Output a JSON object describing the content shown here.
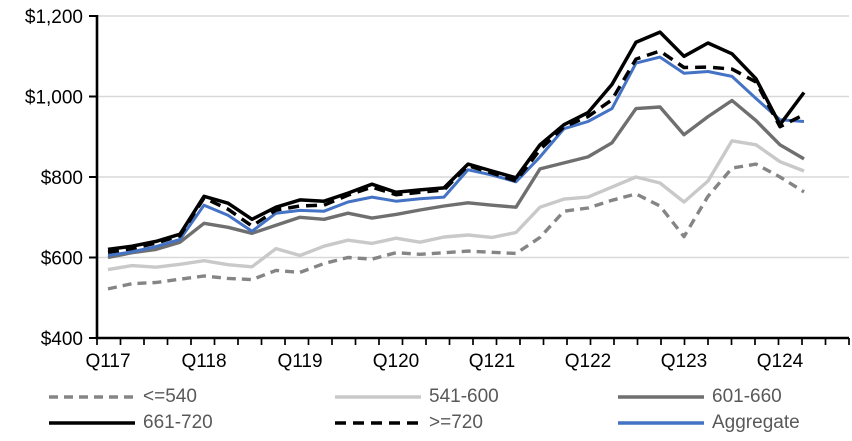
{
  "chart_data": {
    "type": "line",
    "title": "",
    "xlabel": "",
    "ylabel": "",
    "ylim": [
      400,
      1200
    ],
    "grid": "horizontal",
    "y_gridlines": [
      600,
      800,
      1000,
      1200
    ],
    "y_ticks": [
      {
        "label": "$400",
        "value": 400
      },
      {
        "label": "$600",
        "value": 600
      },
      {
        "label": "$800",
        "value": 800
      },
      {
        "label": "$1,000",
        "value": 1000
      },
      {
        "label": "$1,200",
        "value": 1200
      }
    ],
    "x_categories": [
      "Q117",
      "Q217",
      "Q317",
      "Q417",
      "Q118",
      "Q218",
      "Q318",
      "Q418",
      "Q119",
      "Q219",
      "Q319",
      "Q419",
      "Q120",
      "Q220",
      "Q320",
      "Q420",
      "Q121",
      "Q221",
      "Q321",
      "Q421",
      "Q122",
      "Q222",
      "Q322",
      "Q422",
      "Q123",
      "Q223",
      "Q323",
      "Q423",
      "Q124",
      "Q224"
    ],
    "x_tick_labels": [
      "Q117",
      "Q118",
      "Q119",
      "Q120",
      "Q121",
      "Q122",
      "Q123",
      "Q124"
    ],
    "legend_position": "bottom",
    "series": [
      {
        "key": "le-540",
        "name": "<=540",
        "color": "#858585",
        "dash": "9 6",
        "width": 3.4,
        "values": [
          522,
          535,
          538,
          546,
          554,
          548,
          545,
          568,
          563,
          585,
          600,
          596,
          612,
          608,
          612,
          616,
          613,
          610,
          650,
          715,
          723,
          742,
          758,
          728,
          652,
          752,
          822,
          832,
          800,
          763
        ]
      },
      {
        "key": "541-600",
        "name": "541-600",
        "color": "#c9c9c9",
        "dash": "",
        "width": 3.4,
        "values": [
          570,
          580,
          576,
          583,
          592,
          582,
          577,
          622,
          605,
          628,
          643,
          635,
          648,
          638,
          651,
          656,
          650,
          662,
          725,
          745,
          750,
          775,
          800,
          785,
          738,
          790,
          890,
          880,
          838,
          815
        ]
      },
      {
        "key": "601-660",
        "name": "601-660",
        "color": "#6f6f6f",
        "dash": "",
        "width": 3.4,
        "values": [
          600,
          612,
          620,
          638,
          685,
          675,
          660,
          680,
          700,
          695,
          710,
          698,
          707,
          718,
          728,
          736,
          730,
          725,
          820,
          835,
          850,
          885,
          970,
          974,
          905,
          950,
          990,
          940,
          880,
          845
        ]
      },
      {
        "key": "661-720",
        "name": "661-720",
        "color": "#000000",
        "dash": "",
        "width": 3.5,
        "values": [
          620,
          628,
          640,
          658,
          752,
          735,
          695,
          725,
          743,
          740,
          760,
          782,
          762,
          768,
          773,
          832,
          815,
          798,
          880,
          930,
          960,
          1030,
          1135,
          1160,
          1100,
          1133,
          1106,
          1044,
          930,
          1010
        ]
      },
      {
        "key": "ge-720",
        "name": ">=720",
        "color": "#000000",
        "dash": "11 7",
        "width": 3.5,
        "values": [
          613,
          622,
          636,
          654,
          748,
          720,
          678,
          718,
          728,
          730,
          755,
          775,
          756,
          762,
          768,
          828,
          810,
          790,
          868,
          925,
          950,
          992,
          1093,
          1113,
          1072,
          1073,
          1068,
          1036,
          925,
          955
        ]
      },
      {
        "key": "aggregate",
        "name": "Aggregate",
        "color": "#4472c4",
        "dash": "",
        "width": 3.0,
        "values": [
          605,
          614,
          627,
          645,
          730,
          705,
          665,
          710,
          717,
          715,
          738,
          750,
          740,
          746,
          750,
          818,
          805,
          788,
          850,
          920,
          938,
          970,
          1083,
          1098,
          1058,
          1062,
          1050,
          995,
          942,
          938
        ]
      }
    ],
    "colors": {
      "gridline": "#d9d9d9",
      "axis": "#000000",
      "legend_text": "#595959",
      "accent_blue": "#4472c4"
    }
  }
}
